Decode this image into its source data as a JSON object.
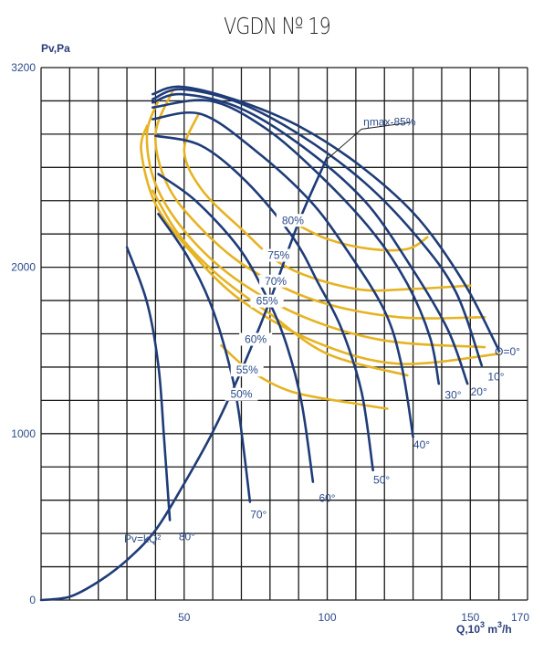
{
  "chart_data": {
    "type": "line",
    "title": "VGDN № 19",
    "ylabel": "Pv,Pa",
    "xlabel": "Q,10³ m³/h",
    "xlim": [
      0,
      170
    ],
    "ylim": [
      0,
      3200
    ],
    "grid": true,
    "x_grid_step": 10,
    "y_grid_step": 200,
    "x_ticks": [
      {
        "value": 50,
        "label": "50"
      },
      {
        "value": 100,
        "label": "100"
      },
      {
        "value": 150,
        "label": "150"
      },
      {
        "value": 170,
        "label": "170"
      }
    ],
    "y_ticks": [
      {
        "value": 0,
        "label": "0"
      },
      {
        "value": 1000,
        "label": "1000"
      },
      {
        "value": 2000,
        "label": "2000"
      },
      {
        "value": 3200,
        "label": "3200"
      }
    ],
    "blade_angle_series": [
      {
        "name": "Θ=0°",
        "label": "Θ=0°",
        "points": [
          [
            39,
            3040
          ],
          [
            49,
            3085
          ],
          [
            69,
            3000
          ],
          [
            91,
            2840
          ],
          [
            113,
            2590
          ],
          [
            132,
            2290
          ],
          [
            148,
            1900
          ],
          [
            160,
            1500
          ]
        ]
      },
      {
        "name": "10°",
        "label": "10°",
        "points": [
          [
            39,
            3010
          ],
          [
            49,
            3070
          ],
          [
            69,
            2990
          ],
          [
            91,
            2790
          ],
          [
            113,
            2510
          ],
          [
            132,
            2170
          ],
          [
            145,
            1850
          ],
          [
            154,
            1410
          ]
        ]
      },
      {
        "name": "20°",
        "label": "20°",
        "points": [
          [
            39,
            2990
          ],
          [
            49,
            3040
          ],
          [
            69,
            2960
          ],
          [
            91,
            2730
          ],
          [
            113,
            2400
          ],
          [
            129,
            2010
          ],
          [
            142,
            1630
          ],
          [
            149,
            1300
          ]
        ]
      },
      {
        "name": "30°",
        "label": "30°",
        "points": [
          [
            39,
            2960
          ],
          [
            59,
            3000
          ],
          [
            78,
            2840
          ],
          [
            97,
            2560
          ],
          [
            116,
            2210
          ],
          [
            128,
            1900
          ],
          [
            136,
            1575
          ],
          [
            139,
            1300
          ]
        ]
      },
      {
        "name": "40°",
        "label": "40°",
        "points": [
          [
            39,
            2890
          ],
          [
            56,
            2920
          ],
          [
            75,
            2700
          ],
          [
            94,
            2400
          ],
          [
            107,
            2100
          ],
          [
            120,
            1740
          ],
          [
            126,
            1410
          ],
          [
            130,
            980
          ]
        ]
      },
      {
        "name": "50°",
        "label": "50°",
        "points": [
          [
            40,
            2790
          ],
          [
            56,
            2730
          ],
          [
            72,
            2510
          ],
          [
            88,
            2180
          ],
          [
            97,
            1900
          ],
          [
            105,
            1630
          ],
          [
            112,
            1250
          ],
          [
            116,
            780
          ]
        ]
      },
      {
        "name": "60°",
        "label": "60°",
        "points": [
          [
            41,
            2560
          ],
          [
            54,
            2400
          ],
          [
            69,
            2120
          ],
          [
            78,
            1850
          ],
          [
            85,
            1575
          ],
          [
            91,
            1190
          ],
          [
            95,
            710
          ]
        ]
      },
      {
        "name": "70°",
        "label": "70°",
        "points": [
          [
            41,
            2320
          ],
          [
            51,
            2070
          ],
          [
            59,
            1790
          ],
          [
            65,
            1465
          ],
          [
            69,
            1140
          ],
          [
            73,
            590
          ]
        ]
      },
      {
        "name": "80°",
        "label": "80°",
        "points": [
          [
            30,
            2120
          ],
          [
            37,
            1790
          ],
          [
            41,
            1410
          ],
          [
            43,
            970
          ],
          [
            45,
            480
          ]
        ]
      }
    ],
    "efficiency_series": [
      {
        "name": "80%",
        "label": "80%",
        "points": [
          [
            88,
            2270
          ],
          [
            100,
            2170
          ],
          [
            115,
            2110
          ],
          [
            128,
            2110
          ],
          [
            135,
            2180
          ]
        ]
      },
      {
        "name": "75%",
        "label": "75%",
        "points": [
          [
            55,
            2920
          ],
          [
            50,
            2700
          ],
          [
            56,
            2470
          ],
          [
            70,
            2230
          ],
          [
            86,
            2000
          ],
          [
            110,
            1870
          ],
          [
            130,
            1870
          ],
          [
            150,
            1890
          ]
        ]
      },
      {
        "name": "70%",
        "label": "70%",
        "points": [
          [
            46,
            3060
          ],
          [
            40,
            2800
          ],
          [
            44,
            2500
          ],
          [
            55,
            2250
          ],
          [
            72,
            2000
          ],
          [
            96,
            1800
          ],
          [
            125,
            1700
          ],
          [
            155,
            1700
          ]
        ]
      },
      {
        "name": "65%",
        "label": "65%",
        "points": [
          [
            41,
            3000
          ],
          [
            37,
            2800
          ],
          [
            40,
            2500
          ],
          [
            51,
            2200
          ],
          [
            68,
            1930
          ],
          [
            92,
            1700
          ],
          [
            120,
            1560
          ],
          [
            155,
            1520
          ]
        ]
      },
      {
        "name": "60%",
        "label": "60%",
        "points": [
          [
            37,
            2850
          ],
          [
            35,
            2700
          ],
          [
            40,
            2380
          ],
          [
            52,
            2100
          ],
          [
            70,
            1800
          ],
          [
            96,
            1550
          ],
          [
            125,
            1420
          ],
          [
            160,
            1480
          ]
        ]
      },
      {
        "name": "55%",
        "label": "55%",
        "points": [
          [
            39,
            2460
          ],
          [
            48,
            2200
          ],
          [
            62,
            1950
          ],
          [
            80,
            1720
          ],
          [
            100,
            1480
          ],
          [
            128,
            1350
          ]
        ]
      },
      {
        "name": "50%",
        "label": "50%",
        "points": [
          [
            63,
            1530
          ],
          [
            73,
            1380
          ],
          [
            88,
            1250
          ],
          [
            110,
            1180
          ],
          [
            121,
            1150
          ]
        ]
      }
    ],
    "system_curve": {
      "name": "Pv=kQ²",
      "label": "Pv=kQ²",
      "points": [
        [
          0,
          0
        ],
        [
          10,
          20
        ],
        [
          20,
          110
        ],
        [
          30,
          240
        ],
        [
          40,
          420
        ],
        [
          50,
          700
        ],
        [
          60,
          1010
        ],
        [
          70,
          1380
        ],
        [
          80,
          1800
        ],
        [
          90,
          2270
        ],
        [
          100,
          2660
        ]
      ]
    },
    "eta_max": {
      "label": "ηmax-85%",
      "value_percent": 85,
      "line_points": [
        [
          100,
          2650
        ],
        [
          112,
          2830
        ],
        [
          129,
          2870
        ]
      ]
    },
    "annotations": [
      "Pv=kQ²",
      "ηmax-85%"
    ]
  }
}
